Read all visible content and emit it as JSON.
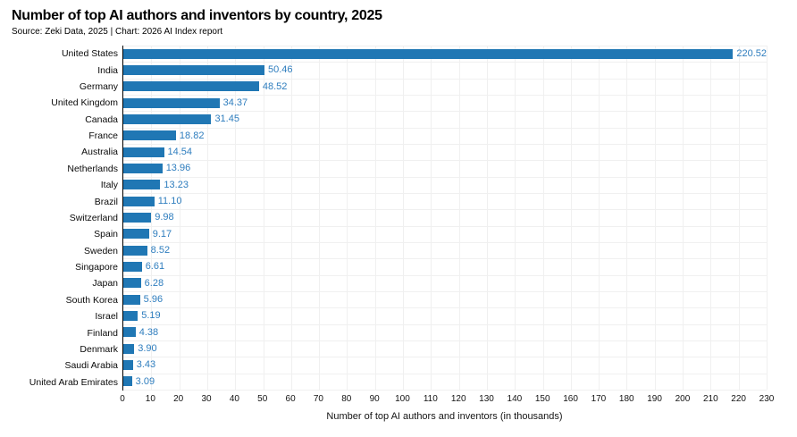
{
  "title": "Number of top AI authors and inventors by country, 2025",
  "subtitle": "Source: Zeki Data, 2025 | Chart: 2026 AI Index report",
  "chart_data": {
    "type": "bar",
    "orientation": "horizontal",
    "title": "Number of top AI authors and inventors by country, 2025",
    "subtitle": "Source: Zeki Data, 2025 | Chart: 2026 AI Index report",
    "xlabel": "Number of top AI authors and inventors (in thousands)",
    "ylabel": "",
    "categories": [
      "United States",
      "India",
      "Germany",
      "United Kingdom",
      "Canada",
      "France",
      "Australia",
      "Netherlands",
      "Italy",
      "Brazil",
      "Switzerland",
      "Spain",
      "Sweden",
      "Singapore",
      "Japan",
      "South Korea",
      "Israel",
      "Finland",
      "Denmark",
      "Saudi Arabia",
      "United Arab Emirates"
    ],
    "values": [
      220.52,
      50.46,
      48.52,
      34.37,
      31.45,
      18.82,
      14.54,
      13.96,
      13.23,
      11.1,
      9.98,
      9.17,
      8.52,
      6.61,
      6.28,
      5.96,
      5.19,
      4.38,
      3.9,
      3.43,
      3.09
    ],
    "value_labels": [
      "220.52",
      "50.46",
      "48.52",
      "34.37",
      "31.45",
      "18.82",
      "14.54",
      "13.96",
      "13.23",
      "11.10",
      "9.98",
      "9.17",
      "8.52",
      "6.61",
      "6.28",
      "5.96",
      "5.19",
      "4.38",
      "3.90",
      "3.43",
      "3.09"
    ],
    "xlim": [
      0,
      230
    ],
    "xticks": [
      0,
      10,
      20,
      30,
      40,
      50,
      60,
      70,
      80,
      90,
      100,
      110,
      120,
      130,
      140,
      150,
      160,
      170,
      180,
      190,
      200,
      210,
      220,
      230
    ],
    "grid": true,
    "legend": false
  },
  "colors": {
    "bar": "#2077b4",
    "value_label": "#2e7dbe",
    "grid": "#f0f0f0",
    "axis": "#000000",
    "text": "#000000"
  }
}
